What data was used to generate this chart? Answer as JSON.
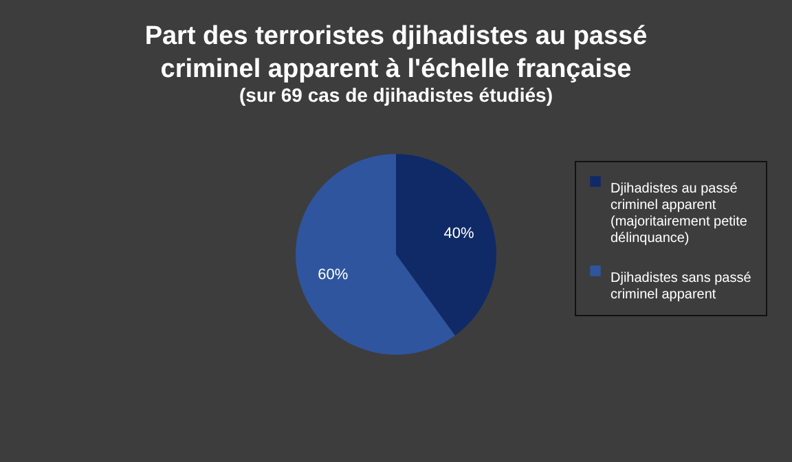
{
  "chart_data": {
    "type": "pie",
    "title": "Part des terroristes djihadistes au passé criminel apparent à l'échelle française",
    "subtitle": "(sur 69 cas de djihadistes étudiés)",
    "categories": [
      "Djihadistes au passé criminel apparent (majoritairement petite délinquance)",
      "Djihadistes sans passé criminel apparent"
    ],
    "values": [
      40,
      60
    ],
    "colors": [
      "#0f2a66",
      "#2f559e"
    ],
    "value_labels": [
      "40%",
      "60%"
    ],
    "legend": "right"
  }
}
